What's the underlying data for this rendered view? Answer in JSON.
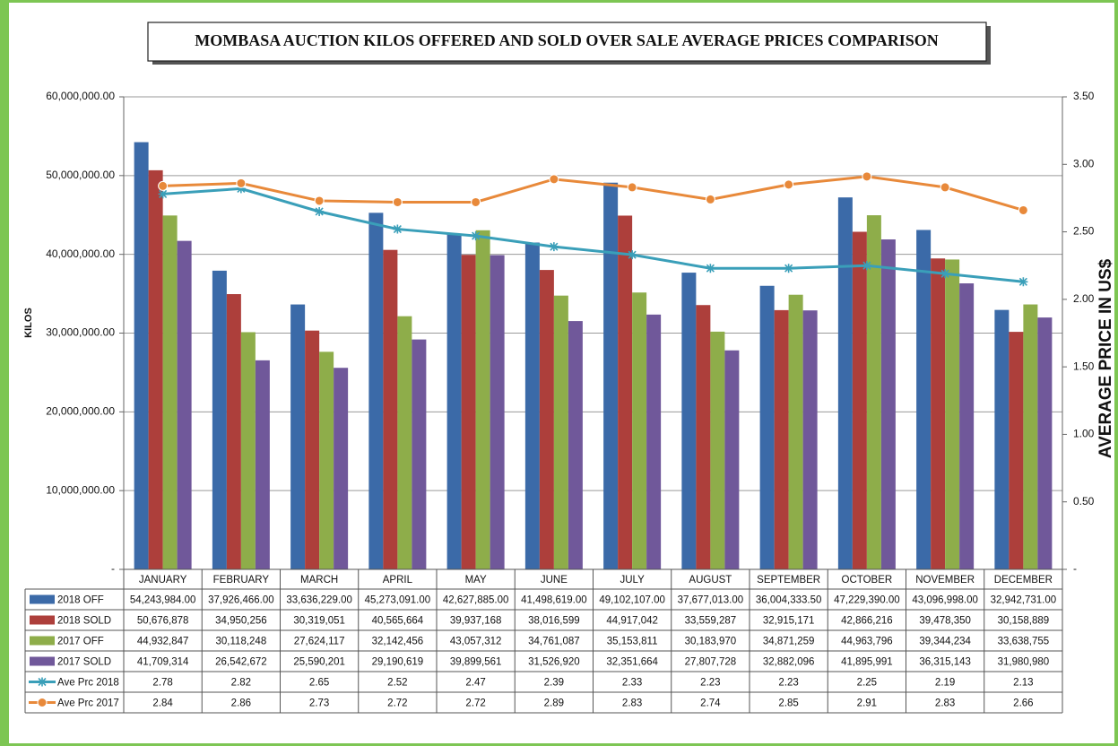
{
  "chart_data": {
    "type": "bar",
    "title": "MOMBASA AUCTION KILOS OFFERED AND SOLD OVER SALE AVERAGE PRICES COMPARISON",
    "y_label": "KILOS",
    "y2_label": "AVERAGE PRICE IN US$",
    "categories": [
      "JANUARY",
      "FEBRUARY",
      "MARCH",
      "APRIL",
      "MAY",
      "JUNE",
      "JULY",
      "AUGUST",
      "SEPTEMBER",
      "OCTOBER",
      "NOVEMBER",
      "DECEMBER"
    ],
    "ylim": [
      0,
      60000000
    ],
    "yticks": [
      {
        "value": 0,
        "label": "-"
      },
      {
        "value": 10000000,
        "label": "10,000,000.00"
      },
      {
        "value": 20000000,
        "label": "20,000,000.00"
      },
      {
        "value": 30000000,
        "label": "30,000,000.00"
      },
      {
        "value": 40000000,
        "label": "40,000,000.00"
      },
      {
        "value": 50000000,
        "label": "50,000,000.00"
      },
      {
        "value": 60000000,
        "label": "60,000,000.00"
      }
    ],
    "y2lim": [
      0,
      3.5
    ],
    "y2ticks": [
      {
        "value": 0,
        "label": "-"
      },
      {
        "value": 0.5,
        "label": "0.50"
      },
      {
        "value": 1,
        "label": "1.00"
      },
      {
        "value": 1.5,
        "label": "1.50"
      },
      {
        "value": 2,
        "label": "2.00"
      },
      {
        "value": 2.5,
        "label": "2.50"
      },
      {
        "value": 3,
        "label": "3.00"
      },
      {
        "value": 3.5,
        "label": "3.50"
      }
    ],
    "grid": true,
    "series": [
      {
        "name": "2018 OFF",
        "type": "bar",
        "color": "#3b6aa8",
        "values": [
          54243984,
          37926466,
          33636229,
          45273091,
          42627885,
          41498619,
          49102107,
          37677013,
          36004333.5,
          47229390,
          43096998,
          32942731
        ],
        "value_labels": [
          "54,243,984.00",
          "37,926,466.00",
          "33,636,229.00",
          "45,273,091.00",
          "42,627,885.00",
          "41,498,619.00",
          "49,102,107.00",
          "37,677,013.00",
          "36,004,333.50",
          "47,229,390.00",
          "43,096,998.00",
          "32,942,731.00"
        ]
      },
      {
        "name": "2018 SOLD",
        "type": "bar",
        "color": "#ad3f3b",
        "values": [
          50676878,
          34950256,
          30319051,
          40565664,
          39937168,
          38016599,
          44917042,
          33559287,
          32915171,
          42866216,
          39478350,
          30158889
        ],
        "value_labels": [
          "50,676,878",
          "34,950,256",
          "30,319,051",
          "40,565,664",
          "39,937,168",
          "38,016,599",
          "44,917,042",
          "33,559,287",
          "32,915,171",
          "42,866,216",
          "39,478,350",
          "30,158,889"
        ]
      },
      {
        "name": "2017 OFF",
        "type": "bar",
        "color": "#8ead4a",
        "values": [
          44932847,
          30118248,
          27624117,
          32142456,
          43057312,
          34761087,
          35153811,
          30183970,
          34871259,
          44963796,
          39344234,
          33638755
        ],
        "value_labels": [
          "44,932,847",
          "30,118,248",
          "27,624,117",
          "32,142,456",
          "43,057,312",
          "34,761,087",
          "35,153,811",
          "30,183,970",
          "34,871,259",
          "44,963,796",
          "39,344,234",
          "33,638,755"
        ]
      },
      {
        "name": "2017 SOLD",
        "type": "bar",
        "color": "#70589a",
        "values": [
          41709314,
          26542672,
          25590201,
          29190619,
          39899561,
          31526920,
          32351664,
          27807728,
          32882096,
          41895991,
          36315143,
          31980980
        ],
        "value_labels": [
          "41,709,314",
          "26,542,672",
          "25,590,201",
          "29,190,619",
          "39,899,561",
          "31,526,920",
          "32,351,664",
          "27,807,728",
          "32,882,096",
          "41,895,991",
          "36,315,143",
          "31,980,980"
        ]
      },
      {
        "name": "Ave Prc 2018",
        "type": "line",
        "axis": "y2",
        "marker": "asterisk",
        "color": "#3a9fb9",
        "values": [
          2.78,
          2.82,
          2.65,
          2.52,
          2.47,
          2.39,
          2.33,
          2.23,
          2.23,
          2.25,
          2.19,
          2.13
        ]
      },
      {
        "name": "Ave Prc 2017",
        "type": "line",
        "axis": "y2",
        "marker": "circle",
        "color": "#e8893a",
        "values": [
          2.84,
          2.86,
          2.73,
          2.72,
          2.72,
          2.89,
          2.83,
          2.74,
          2.85,
          2.91,
          2.83,
          2.66
        ]
      }
    ]
  }
}
